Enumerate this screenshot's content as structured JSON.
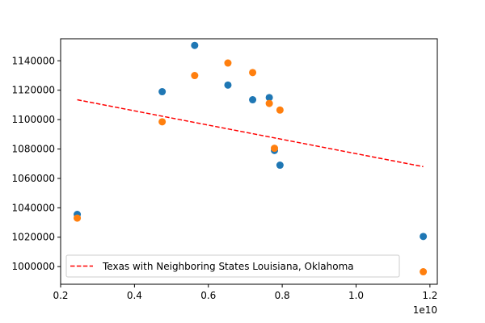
{
  "chart_data": {
    "type": "scatter",
    "x_offset_label": "1e10",
    "xlim": [
      0.2,
      1.22
    ],
    "ylim": [
      988000,
      1155000
    ],
    "x_ticks": [
      {
        "value": 0.2,
        "label": "0.2"
      },
      {
        "value": 0.4,
        "label": "0.4"
      },
      {
        "value": 0.6,
        "label": "0.6"
      },
      {
        "value": 0.8,
        "label": "0.8"
      },
      {
        "value": 1.0,
        "label": "1.0"
      },
      {
        "value": 1.2,
        "label": "1.2"
      }
    ],
    "y_ticks": [
      {
        "value": 1000000,
        "label": "1000000"
      },
      {
        "value": 1020000,
        "label": "1020000"
      },
      {
        "value": 1040000,
        "label": "1040000"
      },
      {
        "value": 1060000,
        "label": "1060000"
      },
      {
        "value": 1080000,
        "label": "1080000"
      },
      {
        "value": 1100000,
        "label": "1100000"
      },
      {
        "value": 1120000,
        "label": "1120000"
      },
      {
        "value": 1140000,
        "label": "1140000"
      }
    ],
    "grid": false,
    "legend_position": "lower-center",
    "series": [
      {
        "color": "#1f77b4",
        "kind": "points",
        "points": [
          [
            0.245,
            1035500
          ],
          [
            0.475,
            1119000
          ],
          [
            0.563,
            1150500
          ],
          [
            0.653,
            1123500
          ],
          [
            0.72,
            1113500
          ],
          [
            0.765,
            1115000
          ],
          [
            0.779,
            1079000
          ],
          [
            0.794,
            1069000
          ],
          [
            1.182,
            1020500
          ]
        ]
      },
      {
        "color": "#ff7f0e",
        "kind": "points",
        "points": [
          [
            0.245,
            1033000
          ],
          [
            0.475,
            1098500
          ],
          [
            0.563,
            1130000
          ],
          [
            0.653,
            1138500
          ],
          [
            0.72,
            1132000
          ],
          [
            0.765,
            1111000
          ],
          [
            0.779,
            1080500
          ],
          [
            0.794,
            1106500
          ],
          [
            1.182,
            996500
          ]
        ]
      },
      {
        "name": "Texas with Neighboring States Louisiana, Oklahoma",
        "color": "#ff0000",
        "kind": "dashed-line",
        "points": [
          [
            0.245,
            1113500
          ],
          [
            1.182,
            1068000
          ]
        ]
      }
    ]
  }
}
